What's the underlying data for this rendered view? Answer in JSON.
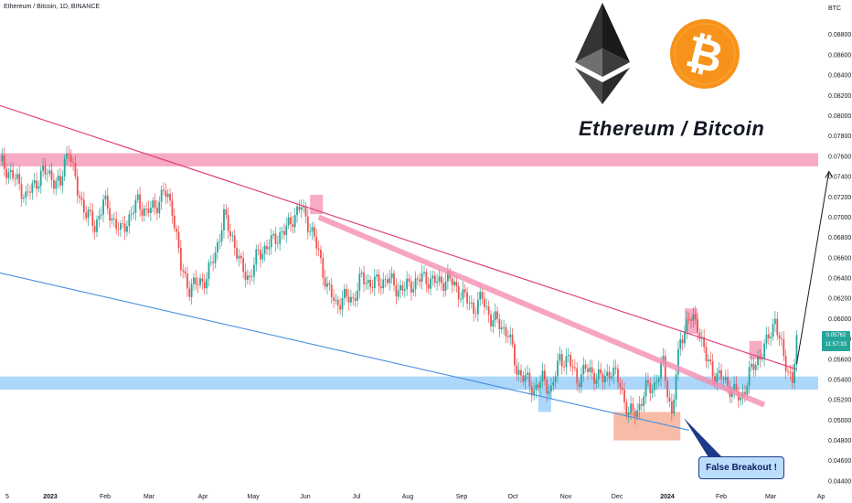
{
  "header": {
    "title": "Ethereum / Bitcoin, 1D, BINANCE",
    "currency": "BTC"
  },
  "overlay_title": "Ethereum / Bitcoin",
  "last_price": {
    "value": "0.05762",
    "countdown": "11:57:33"
  },
  "annotation": "False Breakout !",
  "logos": [
    "ethereum-logo",
    "bitcoin-logo"
  ],
  "colors": {
    "up": "#26a69a",
    "down": "#ef5350",
    "pink_line": "#e0457b",
    "blue_line": "#4a90e2",
    "pink_zone": "#f48fb1",
    "blue_zone": "#90caf9",
    "orange_zone": "#f4a58a"
  },
  "chart_data": {
    "type": "candlestick",
    "title": "Ethereum / Bitcoin, 1D, BINANCE",
    "ylabel": "BTC",
    "ylim": [
      0.043,
      0.0905
    ],
    "y_ticks": [
      "0.04400",
      "0.04600",
      "0.04800",
      "0.05000",
      "0.05200",
      "0.05400",
      "0.05600",
      "0.05800",
      "0.06000",
      "0.06200",
      "0.06400",
      "0.06600",
      "0.06800",
      "0.07000",
      "0.07200",
      "0.07400",
      "0.07600",
      "0.07800",
      "0.08000",
      "0.08200",
      "0.08400",
      "0.08600",
      "0.08800"
    ],
    "x_ticks": [
      "5",
      "2023",
      "Feb",
      "Mar",
      "Apr",
      "May",
      "Jun",
      "Jul",
      "Aug",
      "Sep",
      "Oct",
      "Nov",
      "Dec",
      "2024",
      "Feb",
      "Mar",
      "Ap"
    ],
    "x_tick_bold": [
      false,
      true,
      false,
      false,
      false,
      false,
      false,
      false,
      false,
      false,
      false,
      false,
      false,
      true,
      false,
      false,
      false
    ],
    "price_path": [
      [
        0,
        0.0755
      ],
      [
        4,
        0.0745
      ],
      [
        8,
        0.0735
      ],
      [
        12,
        0.072
      ],
      [
        16,
        0.0732
      ],
      [
        20,
        0.0745
      ],
      [
        24,
        0.074
      ],
      [
        28,
        0.073
      ],
      [
        30,
        0.0755
      ],
      [
        32,
        0.077
      ],
      [
        34,
        0.0745
      ],
      [
        36,
        0.0725
      ],
      [
        40,
        0.0705
      ],
      [
        44,
        0.069
      ],
      [
        48,
        0.0715
      ],
      [
        52,
        0.07
      ],
      [
        56,
        0.0685
      ],
      [
        60,
        0.07
      ],
      [
        64,
        0.0715
      ],
      [
        68,
        0.0705
      ],
      [
        72,
        0.071
      ],
      [
        76,
        0.0725
      ],
      [
        80,
        0.071
      ],
      [
        84,
        0.065
      ],
      [
        88,
        0.063
      ],
      [
        92,
        0.0635
      ],
      [
        96,
        0.064
      ],
      [
        100,
        0.0665
      ],
      [
        104,
        0.07
      ],
      [
        108,
        0.068
      ],
      [
        112,
        0.065
      ],
      [
        116,
        0.064
      ],
      [
        120,
        0.0665
      ],
      [
        124,
        0.067
      ],
      [
        128,
        0.068
      ],
      [
        132,
        0.0685
      ],
      [
        136,
        0.07
      ],
      [
        140,
        0.071
      ],
      [
        144,
        0.069
      ],
      [
        148,
        0.0665
      ],
      [
        152,
        0.063
      ],
      [
        156,
        0.0615
      ],
      [
        160,
        0.062
      ],
      [
        164,
        0.062
      ],
      [
        168,
        0.064
      ],
      [
        172,
        0.0635
      ],
      [
        176,
        0.0635
      ],
      [
        180,
        0.064
      ],
      [
        184,
        0.063
      ],
      [
        188,
        0.063
      ],
      [
        192,
        0.0635
      ],
      [
        196,
        0.064
      ],
      [
        200,
        0.0638
      ],
      [
        204,
        0.0635
      ],
      [
        208,
        0.064
      ],
      [
        212,
        0.063
      ],
      [
        216,
        0.062
      ],
      [
        220,
        0.061
      ],
      [
        224,
        0.062
      ],
      [
        228,
        0.06
      ],
      [
        232,
        0.0595
      ],
      [
        236,
        0.0585
      ],
      [
        240,
        0.055
      ],
      [
        244,
        0.054
      ],
      [
        248,
        0.053
      ],
      [
        252,
        0.054
      ],
      [
        256,
        0.053
      ],
      [
        260,
        0.056
      ],
      [
        264,
        0.056
      ],
      [
        268,
        0.054
      ],
      [
        272,
        0.055
      ],
      [
        276,
        0.0545
      ],
      [
        280,
        0.054
      ],
      [
        284,
        0.055
      ],
      [
        288,
        0.0535
      ],
      [
        292,
        0.0505
      ],
      [
        296,
        0.051
      ],
      [
        300,
        0.053
      ],
      [
        304,
        0.0535
      ],
      [
        308,
        0.0555
      ],
      [
        312,
        0.0505
      ],
      [
        316,
        0.058
      ],
      [
        320,
        0.06
      ],
      [
        324,
        0.0595
      ],
      [
        328,
        0.056
      ],
      [
        332,
        0.0545
      ],
      [
        336,
        0.054
      ],
      [
        340,
        0.053
      ],
      [
        344,
        0.052
      ],
      [
        348,
        0.0545
      ],
      [
        352,
        0.056
      ],
      [
        356,
        0.0575
      ],
      [
        360,
        0.06
      ],
      [
        364,
        0.056
      ],
      [
        368,
        0.054
      ],
      [
        370,
        0.0576
      ]
    ],
    "day_range": [
      0,
      380
    ],
    "trendlines": [
      {
        "name": "upper-resistance",
        "points": [
          [
            0,
            0.081
          ],
          [
            370,
            0.055
          ]
        ]
      },
      {
        "name": "lower-support-line",
        "points": [
          [
            0,
            0.0645
          ],
          [
            320,
            0.049
          ]
        ]
      },
      {
        "name": "inner-channel",
        "points": [
          [
            148,
            0.07
          ],
          [
            355,
            0.0515
          ]
        ]
      }
    ],
    "zones": [
      {
        "name": "resistance-zone",
        "price": [
          0.075,
          0.0763
        ],
        "days": [
          0,
          380
        ]
      },
      {
        "name": "support-zone",
        "price": [
          0.053,
          0.0543
        ],
        "days": [
          0,
          380
        ]
      },
      {
        "name": "false-breakout-zone",
        "price": [
          0.048,
          0.0508
        ],
        "days": [
          285,
          316
        ]
      },
      {
        "name": "jun-peak-marker",
        "price": [
          0.0703,
          0.0722
        ],
        "days": [
          144,
          150
        ]
      },
      {
        "name": "jan-peak-marker",
        "price": [
          0.0585,
          0.061
        ],
        "days": [
          318,
          324
        ]
      },
      {
        "name": "mar-marker",
        "price": [
          0.056,
          0.0578
        ],
        "days": [
          348,
          354
        ]
      },
      {
        "name": "oct-low-marker",
        "price": [
          0.0508,
          0.0532
        ],
        "days": [
          250,
          256
        ]
      }
    ],
    "projection_arrow": {
      "from": [
        370,
        0.0555
      ],
      "to": [
        385,
        0.0745
      ]
    },
    "grid": false
  }
}
